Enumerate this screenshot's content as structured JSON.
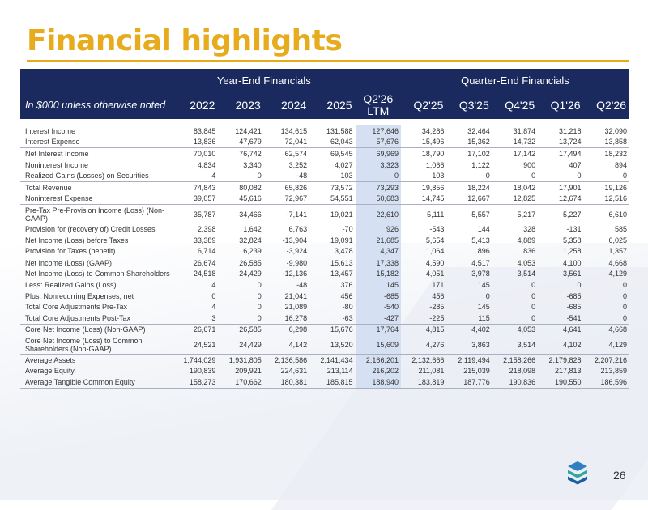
{
  "title": "Financial highlights",
  "page_number": "26",
  "colors": {
    "accent": "#e6ac1e",
    "header_bg": "#1b2a5e",
    "ltm_highlight": "#d5e1f3"
  },
  "table": {
    "group_headers": {
      "year_end": "Year-End Financials",
      "quarter_end": "Quarter-End Financials"
    },
    "label_header": "In $000 unless otherwise noted",
    "columns": [
      "2022",
      "2023",
      "2024",
      "2025",
      "Q2'26 LTM",
      "Q2'25",
      "Q3'25",
      "Q4'25",
      "Q1'26",
      "Q2'26"
    ],
    "rows": [
      {
        "label": "Interest Income",
        "values": [
          "83,845",
          "124,421",
          "134,615",
          "131,588",
          "127,646",
          "34,286",
          "32,464",
          "31,874",
          "31,218",
          "32,090"
        ]
      },
      {
        "label": "Interest Expense",
        "values": [
          "13,836",
          "47,679",
          "72,041",
          "62,043",
          "57,676",
          "15,496",
          "15,362",
          "14,732",
          "13,724",
          "13,858"
        ]
      },
      {
        "label": "Net Interest Income",
        "values": [
          "70,010",
          "76,742",
          "62,574",
          "69,545",
          "69,969",
          "18,790",
          "17,102",
          "17,142",
          "17,494",
          "18,232"
        ]
      },
      {
        "label": "Noninterest Income",
        "values": [
          "4,834",
          "3,340",
          "3,252",
          "4,027",
          "3,323",
          "1,066",
          "1,122",
          "900",
          "407",
          "894"
        ]
      },
      {
        "label": "Realized Gains (Losses) on Securities",
        "values": [
          "4",
          "0",
          "-48",
          "103",
          "0",
          "103",
          "0",
          "0",
          "0",
          "0"
        ]
      },
      {
        "label": "Total Revenue",
        "values": [
          "74,843",
          "80,082",
          "65,826",
          "73,572",
          "73,293",
          "19,856",
          "18,224",
          "18,042",
          "17,901",
          "19,126"
        ]
      },
      {
        "label": "Noninterest Expense",
        "values": [
          "39,057",
          "45,616",
          "72,967",
          "54,551",
          "50,683",
          "14,745",
          "12,667",
          "12,825",
          "12,674",
          "12,516"
        ]
      },
      {
        "label": "Pre-Tax Pre-Provision Income (Loss) (Non-GAAP)",
        "values": [
          "35,787",
          "34,466",
          "-7,141",
          "19,021",
          "22,610",
          "5,111",
          "5,557",
          "5,217",
          "5,227",
          "6,610"
        ]
      },
      {
        "label": "Provision for (recovery of) Credit Losses",
        "values": [
          "2,398",
          "1,642",
          "6,763",
          "-70",
          "926",
          "-543",
          "144",
          "328",
          "-131",
          "585"
        ]
      },
      {
        "label": "Net Income (Loss) before Taxes",
        "values": [
          "33,389",
          "32,824",
          "-13,904",
          "19,091",
          "21,685",
          "5,654",
          "5,413",
          "4,889",
          "5,358",
          "6,025"
        ]
      },
      {
        "label": "Provision for Taxes (benefit)",
        "values": [
          "6,714",
          "6,239",
          "-3,924",
          "3,478",
          "4,347",
          "1,064",
          "896",
          "836",
          "1,258",
          "1,357"
        ]
      },
      {
        "label": "Net Income (Loss)  (GAAP)",
        "values": [
          "26,674",
          "26,585",
          "-9,980",
          "15,613",
          "17,338",
          "4,590",
          "4,517",
          "4,053",
          "4,100",
          "4,668"
        ]
      },
      {
        "label": "Net Income (Loss) to Common Shareholders",
        "values": [
          "24,518",
          "24,429",
          "-12,136",
          "13,457",
          "15,182",
          "4,051",
          "3,978",
          "3,514",
          "3,561",
          "4,129"
        ]
      },
      {
        "label": "Less: Realized Gains (Loss)",
        "values": [
          "4",
          "0",
          "-48",
          "376",
          "145",
          "171",
          "145",
          "0",
          "0",
          "0"
        ]
      },
      {
        "label": "Plus: Nonrecurring Expenses, net",
        "values": [
          "0",
          "0",
          "21,041",
          "456",
          "-685",
          "456",
          "0",
          "0",
          "-685",
          "0"
        ]
      },
      {
        "label": "Total Core Adjustments Pre-Tax",
        "values": [
          "4",
          "0",
          "21,089",
          "-80",
          "-540",
          "-285",
          "145",
          "0",
          "-685",
          "0"
        ]
      },
      {
        "label": "Total Core Adjustments Post-Tax",
        "values": [
          "3",
          "0",
          "16,278",
          "-63",
          "-427",
          "-225",
          "115",
          "0",
          "-541",
          "0"
        ]
      },
      {
        "label": "Core Net Income (Loss) (Non-GAAP)",
        "values": [
          "26,671",
          "26,585",
          "6,298",
          "15,676",
          "17,764",
          "4,815",
          "4,402",
          "4,053",
          "4,641",
          "4,668"
        ]
      },
      {
        "label": "Core Net Income (Loss) to Common Shareholders (Non-GAAP)",
        "values": [
          "24,521",
          "24,429",
          "4,142",
          "13,520",
          "15,609",
          "4,276",
          "3,863",
          "3,514",
          "4,102",
          "4,129"
        ]
      },
      {
        "label": "Average Assets",
        "values": [
          "1,744,029",
          "1,931,805",
          "2,136,586",
          "2,141,434",
          "2,166,201",
          "2,132,666",
          "2,119,494",
          "2,158,266",
          "2,179,828",
          "2,207,216"
        ]
      },
      {
        "label": "Average Equity",
        "values": [
          "190,839",
          "209,921",
          "224,631",
          "213,114",
          "216,202",
          "211,081",
          "215,039",
          "218,098",
          "217,813",
          "213,859"
        ]
      },
      {
        "label": "Average Tangible Common Equity",
        "values": [
          "158,273",
          "170,662",
          "180,381",
          "185,815",
          "188,940",
          "183,819",
          "187,776",
          "190,836",
          "190,550",
          "186,596"
        ]
      }
    ]
  },
  "icons": {
    "logo": "stacked-layers-icon"
  }
}
